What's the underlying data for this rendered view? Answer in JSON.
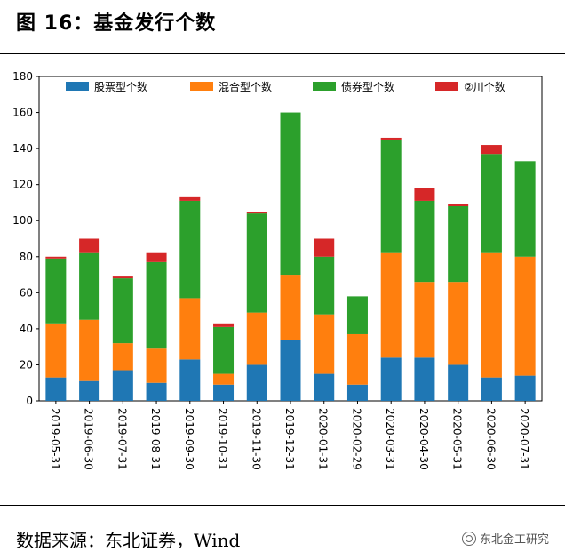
{
  "figure_title": "图 16：基金发行个数",
  "source_text": "数据来源：东北证券，Wind",
  "watermark": "东北金工研究",
  "colors": {
    "stock": "#1f77b4",
    "mixed": "#ff7f0e",
    "bond": "#2ca02c",
    "other": "#d62728"
  },
  "chart_data": {
    "type": "bar",
    "stacked": true,
    "categories": [
      "2019-05-31",
      "2019-06-30",
      "2019-07-31",
      "2019-08-31",
      "2019-09-30",
      "2019-10-31",
      "2019-11-30",
      "2019-12-31",
      "2020-01-31",
      "2020-02-29",
      "2020-03-31",
      "2020-04-30",
      "2020-05-31",
      "2020-06-30",
      "2020-07-31"
    ],
    "series": [
      {
        "name": "股票型个数",
        "values": [
          13,
          11,
          17,
          10,
          23,
          9,
          20,
          34,
          15,
          9,
          24,
          24,
          20,
          13,
          14
        ]
      },
      {
        "name": "混合型个数",
        "values": [
          30,
          34,
          15,
          19,
          34,
          6,
          29,
          36,
          33,
          28,
          58,
          42,
          46,
          69,
          66
        ]
      },
      {
        "name": "债券型个数",
        "values": [
          36,
          37,
          36,
          48,
          54,
          26,
          55,
          90,
          32,
          21,
          63,
          45,
          42,
          55,
          53
        ]
      },
      {
        "name": "②川个数",
        "values": [
          1,
          8,
          1,
          5,
          2,
          2,
          1,
          0,
          10,
          0,
          1,
          7,
          1,
          5,
          0
        ]
      }
    ],
    "ylim": [
      0,
      180
    ],
    "yticks": [
      "0",
      "20",
      "40",
      "60",
      "80",
      "100",
      "120",
      "140",
      "160",
      "180"
    ],
    "legend_position": "top",
    "grid": false
  }
}
